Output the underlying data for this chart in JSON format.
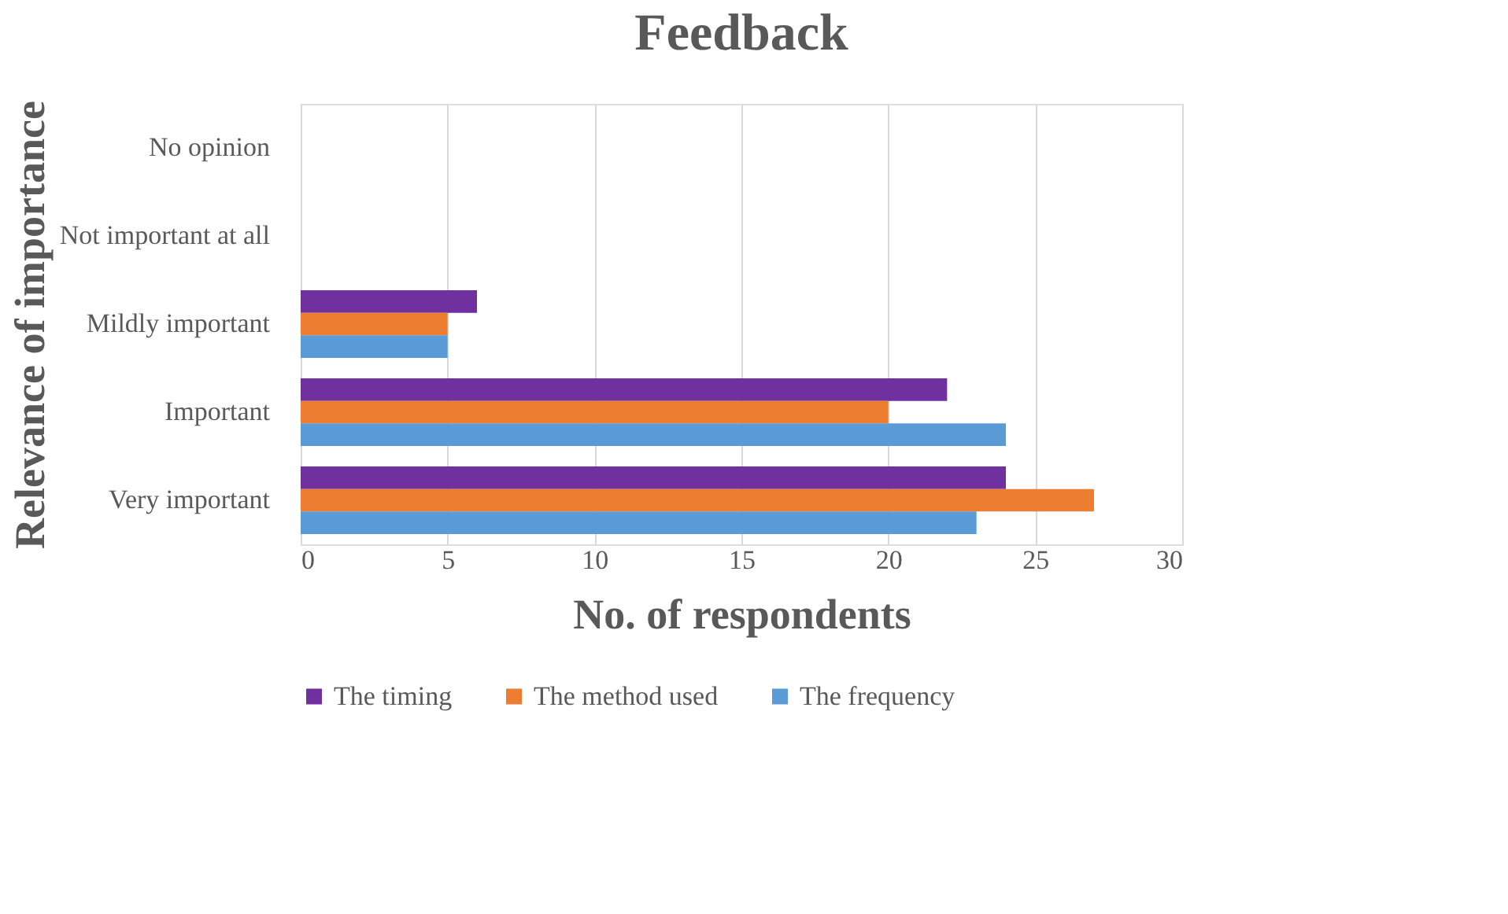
{
  "chart_data": {
    "type": "bar",
    "orientation": "horizontal",
    "title": "Feedback",
    "xlabel": "No.  of respondents",
    "ylabel": "Relevance of importance",
    "categories": [
      "No opinion",
      "Not important at all",
      "Mildly important",
      "Important",
      "Very important"
    ],
    "series": [
      {
        "name": "The timing",
        "color": "#7030a0",
        "values": [
          0,
          0,
          6,
          22,
          24
        ]
      },
      {
        "name": "The method used",
        "color": "#ed7d31",
        "values": [
          0,
          0,
          5,
          20,
          27
        ]
      },
      {
        "name": "The frequency",
        "color": "#5b9bd5",
        "values": [
          0,
          0,
          5,
          24,
          23
        ]
      }
    ],
    "xlim": [
      0,
      30
    ],
    "xticks": [
      0,
      5,
      10,
      15,
      20,
      25,
      30
    ],
    "grid": "x",
    "legend": "bottom"
  }
}
